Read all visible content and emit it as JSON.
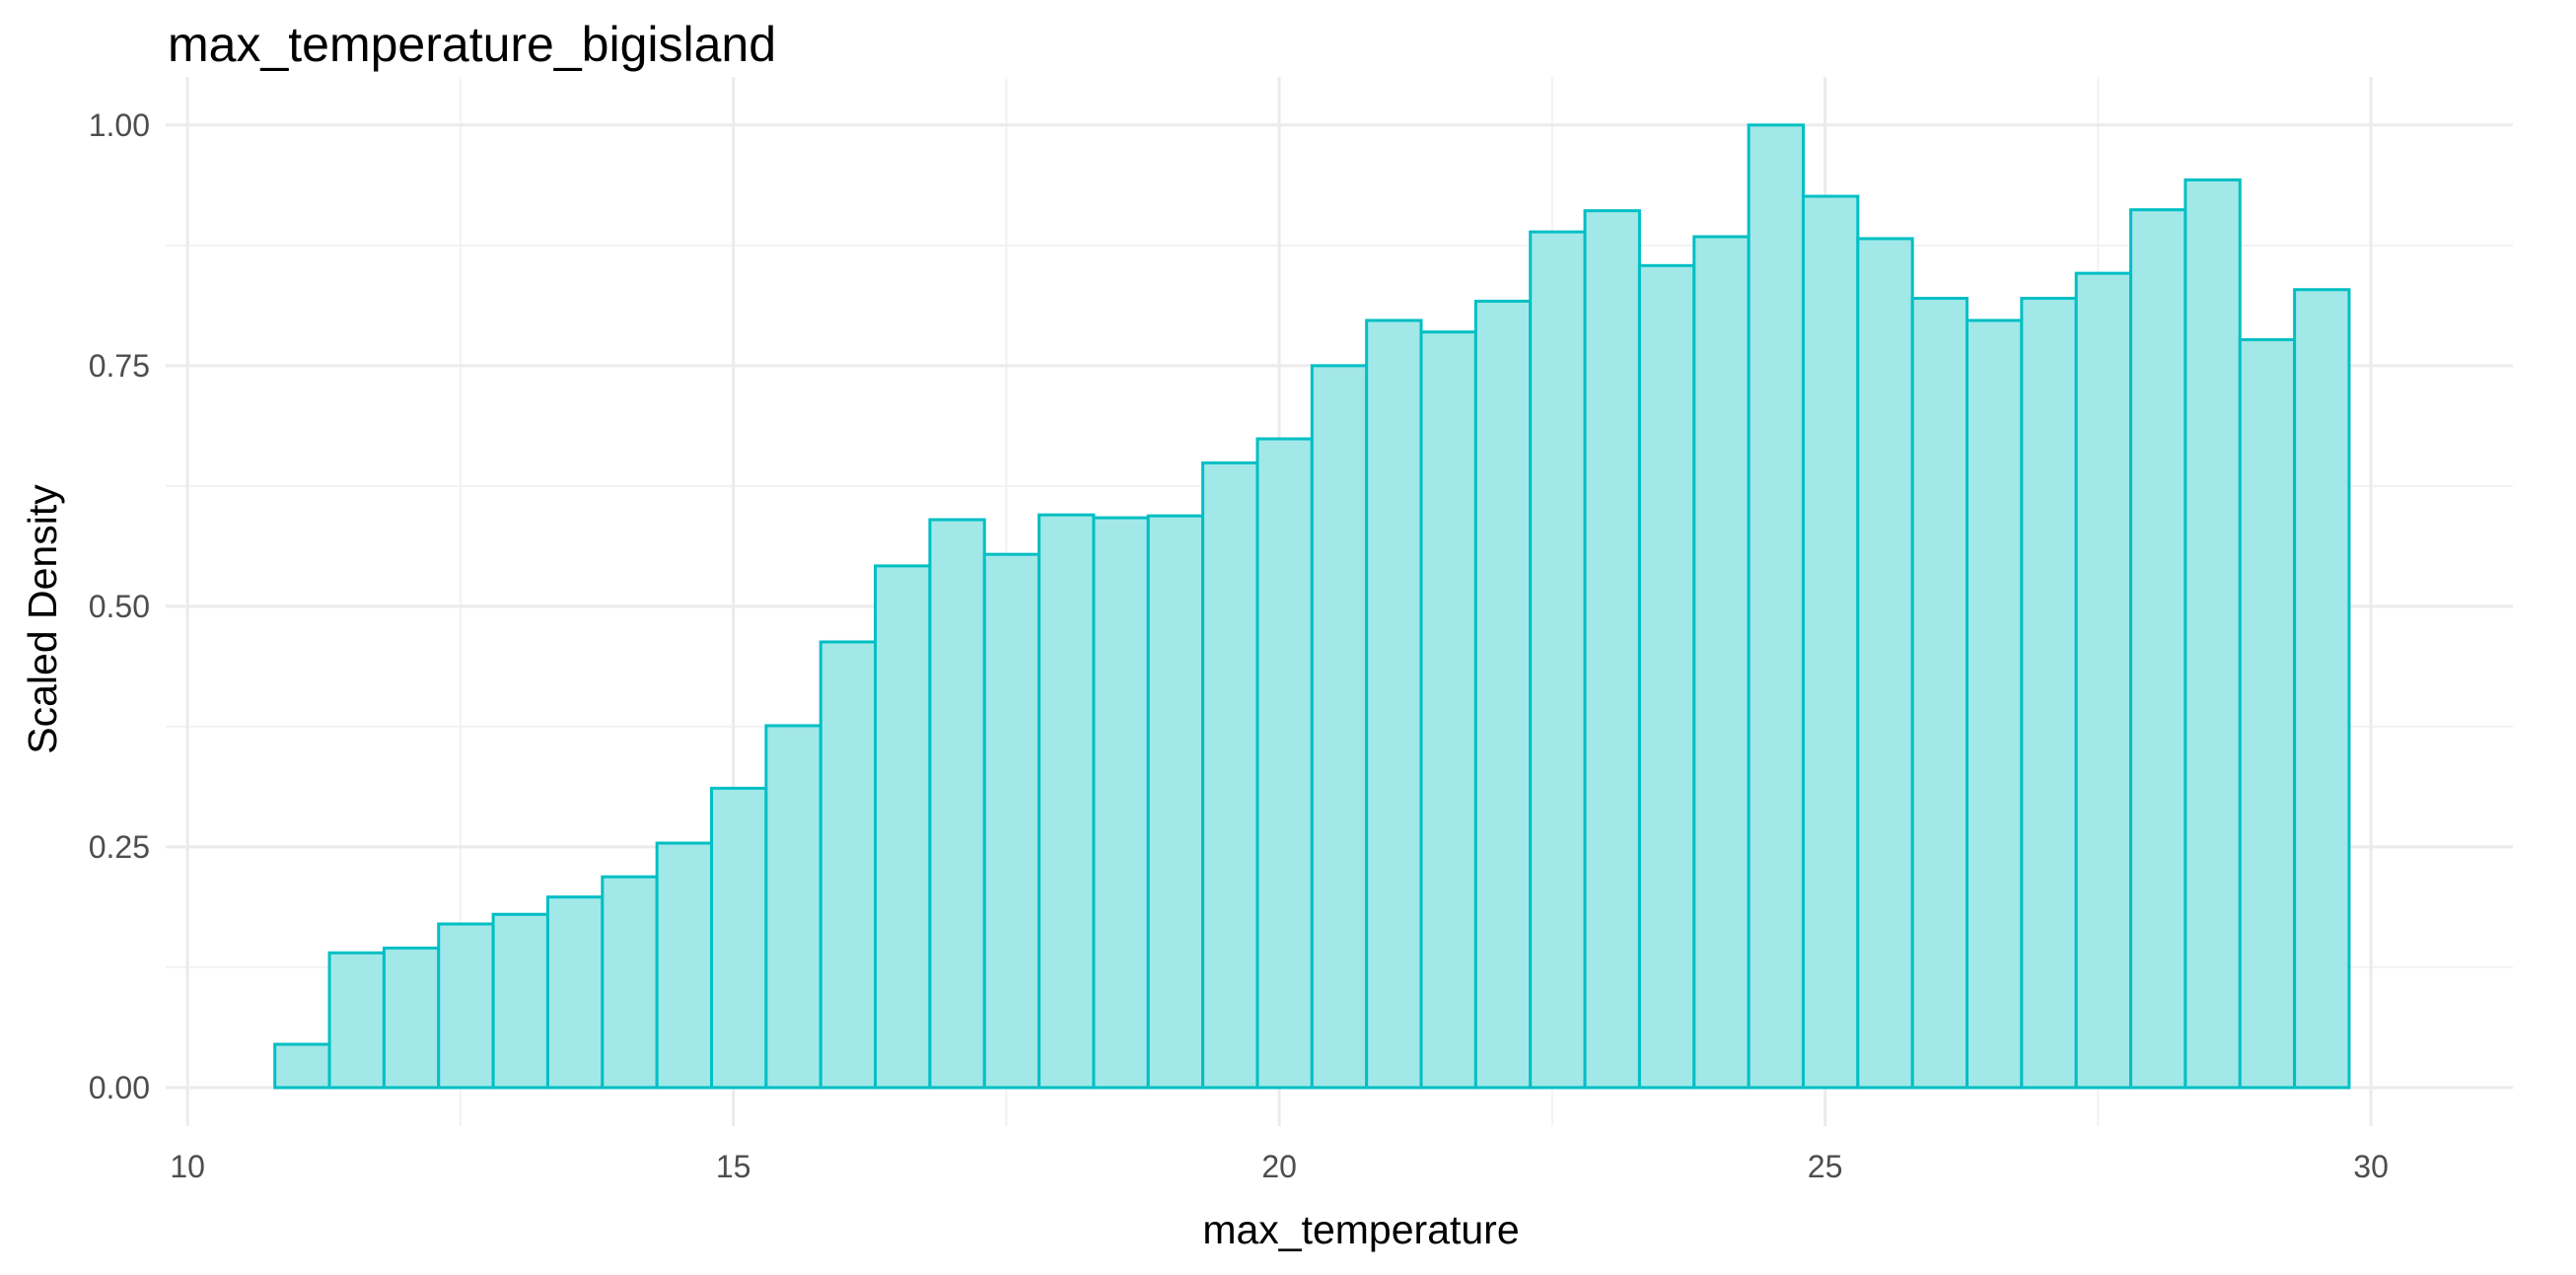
{
  "chart_data": {
    "type": "bar",
    "title": "max_temperature_bigisland",
    "xlabel": "max_temperature",
    "ylabel": "Scaled Density",
    "xlim": [
      9.8,
      31.3
    ],
    "ylim": [
      -0.04,
      1.05
    ],
    "x_ticks": [
      10,
      15,
      20,
      25,
      30
    ],
    "x_tick_labels": [
      "10",
      "15",
      "20",
      "25",
      "30"
    ],
    "y_ticks": [
      0,
      0.25,
      0.5,
      0.75,
      1.0
    ],
    "y_tick_labels": [
      "0.00",
      "0.25",
      "0.50",
      "0.75",
      "1.00"
    ],
    "grid": true,
    "legend": "none",
    "fill_color": "#a2e8e8",
    "stroke_color": "#00bfc4",
    "bin_start": 10.8,
    "bin_width": 0.5,
    "values": [
      0.045,
      0.14,
      0.145,
      0.17,
      0.18,
      0.198,
      0.219,
      0.254,
      0.311,
      0.376,
      0.463,
      0.542,
      0.59,
      0.554,
      0.595,
      0.592,
      0.594,
      0.649,
      0.674,
      0.75,
      0.797,
      0.785,
      0.817,
      0.889,
      0.911,
      0.854,
      0.884,
      1.0,
      0.926,
      0.882,
      0.82,
      0.797,
      0.82,
      0.846,
      0.912,
      0.943,
      0.777,
      0.829
    ]
  }
}
